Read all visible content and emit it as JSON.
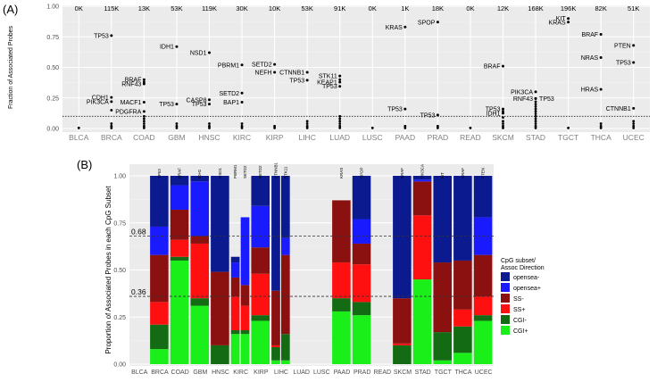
{
  "panel_a_label": "(A)",
  "panel_b_label": "(B)",
  "chart_data": [
    {
      "type": "scatter",
      "ylabel": "Fraction of Associated Probes",
      "ylim": [
        0,
        1.0
      ],
      "yticks": [
        "0.00",
        "0.25",
        "0.50",
        "0.75",
        "1.00"
      ],
      "grid": true,
      "threshold": 0.1,
      "categories": [
        "BLCA",
        "BRCA",
        "COAD",
        "GBM",
        "HNSC",
        "KIRC",
        "KIRP",
        "LIHC",
        "LUAD",
        "LUSC",
        "PAAD",
        "PRAD",
        "READ",
        "SKCM",
        "STAD",
        "TGCT",
        "THCA",
        "UCEC"
      ],
      "counts": [
        "0K",
        "115K",
        "13K",
        "53K",
        "119K",
        "30K",
        "10K",
        "53K",
        "91K",
        "0K",
        "1K",
        "18K",
        "0K",
        "12K",
        "168K",
        "196K",
        "82K",
        "51K"
      ],
      "labeled_points": [
        {
          "cat": 1,
          "y": 0.76,
          "label": "TP53",
          "side": "left"
        },
        {
          "cat": 1,
          "y": 0.255,
          "label": "CDH1",
          "side": "left"
        },
        {
          "cat": 1,
          "y": 0.22,
          "label": "PIK3CA",
          "side": "left"
        },
        {
          "cat": 2,
          "y": 0.4,
          "label": "BRAF",
          "side": "left"
        },
        {
          "cat": 2,
          "y": 0.365,
          "label": "RNF43",
          "side": "left"
        },
        {
          "cat": 2,
          "y": 0.215,
          "label": "MACF1",
          "side": "left"
        },
        {
          "cat": 2,
          "y": 0.14,
          "label": "PDGFRA",
          "side": "left"
        },
        {
          "cat": 3,
          "y": 0.67,
          "label": "IDH1",
          "side": "left"
        },
        {
          "cat": 3,
          "y": 0.2,
          "label": "TP53",
          "side": "left"
        },
        {
          "cat": 4,
          "y": 0.62,
          "label": "NSD1",
          "side": "left"
        },
        {
          "cat": 4,
          "y": 0.235,
          "label": "CASP8",
          "side": "left"
        },
        {
          "cat": 4,
          "y": 0.2,
          "label": "TP53",
          "side": "left"
        },
        {
          "cat": 5,
          "y": 0.52,
          "label": "PBRM1",
          "side": "left"
        },
        {
          "cat": 5,
          "y": 0.29,
          "label": "SETD2",
          "side": "left"
        },
        {
          "cat": 5,
          "y": 0.215,
          "label": "BAP1",
          "side": "left"
        },
        {
          "cat": 6,
          "y": 0.525,
          "label": "SETD2",
          "side": "left"
        },
        {
          "cat": 6,
          "y": 0.46,
          "label": "NEFH",
          "side": "left"
        },
        {
          "cat": 7,
          "y": 0.46,
          "label": "CTNNB1",
          "side": "left"
        },
        {
          "cat": 7,
          "y": 0.395,
          "label": "TP53",
          "side": "left"
        },
        {
          "cat": 8,
          "y": 0.43,
          "label": "STK11",
          "side": "left"
        },
        {
          "cat": 8,
          "y": 0.38,
          "label": "KEAP1",
          "side": "left"
        },
        {
          "cat": 8,
          "y": 0.345,
          "label": "TP53",
          "side": "left"
        },
        {
          "cat": 10,
          "y": 0.83,
          "label": "KRAS",
          "side": "left"
        },
        {
          "cat": 10,
          "y": 0.16,
          "label": "TP53",
          "side": "left"
        },
        {
          "cat": 11,
          "y": 0.87,
          "label": "SPOP",
          "side": "left"
        },
        {
          "cat": 11,
          "y": 0.11,
          "label": "TP53",
          "side": "left"
        },
        {
          "cat": 13,
          "y": 0.51,
          "label": "BRAF",
          "side": "left"
        },
        {
          "cat": 13,
          "y": 0.16,
          "label": "TP53",
          "side": "left"
        },
        {
          "cat": 13,
          "y": 0.125,
          "label": "IDH1",
          "side": "left"
        },
        {
          "cat": 14,
          "y": 0.3,
          "label": "PIK3CA",
          "side": "left"
        },
        {
          "cat": 14,
          "y": 0.245,
          "label": "RNF43",
          "side": "left"
        },
        {
          "cat": 14,
          "y": 0.245,
          "label": "TP53",
          "side": "right"
        },
        {
          "cat": 15,
          "y": 0.9,
          "label": "KIT",
          "side": "left"
        },
        {
          "cat": 15,
          "y": 0.87,
          "label": "KRAS",
          "side": "left"
        },
        {
          "cat": 16,
          "y": 0.77,
          "label": "BRAF",
          "side": "left"
        },
        {
          "cat": 16,
          "y": 0.58,
          "label": "NRAS",
          "side": "left"
        },
        {
          "cat": 16,
          "y": 0.32,
          "label": "HRAS",
          "side": "left"
        },
        {
          "cat": 17,
          "y": 0.68,
          "label": "PTEN",
          "side": "left"
        },
        {
          "cat": 17,
          "y": 0.54,
          "label": "TP53",
          "side": "left"
        },
        {
          "cat": 17,
          "y": 0.165,
          "label": "CTNNB1",
          "side": "left"
        }
      ],
      "minor_points": [
        {
          "cat": 0,
          "ys": [
            0.005
          ]
        },
        {
          "cat": 1,
          "ys": [
            0.005,
            0.02,
            0.04,
            0.15
          ]
        },
        {
          "cat": 2,
          "ys": [
            0.005,
            0.02,
            0.04,
            0.06,
            0.08,
            0.1,
            0.38
          ]
        },
        {
          "cat": 3,
          "ys": [
            0.005,
            0.02,
            0.04
          ]
        },
        {
          "cat": 4,
          "ys": [
            0.005,
            0.02,
            0.04
          ]
        },
        {
          "cat": 5,
          "ys": [
            0.005,
            0.02,
            0.04
          ]
        },
        {
          "cat": 6,
          "ys": [
            0.005,
            0.02
          ]
        },
        {
          "cat": 7,
          "ys": [
            0.005,
            0.02,
            0.04,
            0.06
          ]
        },
        {
          "cat": 8,
          "ys": [
            0.005,
            0.02,
            0.04,
            0.06,
            0.08,
            0.1,
            0.4
          ]
        },
        {
          "cat": 9,
          "ys": [
            0.005
          ]
        },
        {
          "cat": 10,
          "ys": [
            0.005,
            0.02
          ]
        },
        {
          "cat": 11,
          "ys": [
            0.005,
            0.02
          ]
        },
        {
          "cat": 12,
          "ys": [
            0.005
          ]
        },
        {
          "cat": 13,
          "ys": [
            0.005,
            0.02,
            0.04,
            0.06,
            0.09,
            0.14
          ]
        },
        {
          "cat": 14,
          "ys": [
            0.005,
            0.02,
            0.04,
            0.06,
            0.08,
            0.1,
            0.12,
            0.14,
            0.16,
            0.18,
            0.2,
            0.22
          ]
        },
        {
          "cat": 15,
          "ys": [
            0.005
          ]
        },
        {
          "cat": 16,
          "ys": [
            0.005,
            0.02,
            0.04
          ]
        },
        {
          "cat": 17,
          "ys": [
            0.005,
            0.02,
            0.04,
            0.06
          ]
        }
      ]
    },
    {
      "type": "bar",
      "stacked": true,
      "ylabel": "Proportion of Associated Probes in each CpG Subset",
      "ylim": [
        0,
        1.0
      ],
      "yticks": [
        "0.00",
        "0.25",
        "0.50",
        "0.75",
        "1.00"
      ],
      "ref_lines": [
        0.68,
        0.36
      ],
      "ref_labels": [
        "0.68",
        "0.36"
      ],
      "categories": [
        "BLCA",
        "BRCA",
        "COAD",
        "GBM",
        "HNSC",
        "KIRC",
        "KIRP",
        "LIHC",
        "LUAD",
        "LUSC",
        "PAAD",
        "PRAD",
        "READ",
        "SKCM",
        "STAD",
        "TGCT",
        "THCA",
        "UCEC"
      ],
      "legend_title_line1": "CpG subset/",
      "legend_title_line2": "Assoc Direction",
      "legend": [
        {
          "name": "opensea-",
          "color": "#0b1a8f"
        },
        {
          "name": "opensea+",
          "color": "#1a1aff"
        },
        {
          "name": "SS-",
          "color": "#8b1010"
        },
        {
          "name": "SS+",
          "color": "#ff1010"
        },
        {
          "name": "CGI-",
          "color": "#136b13"
        },
        {
          "name": "CGI+",
          "color": "#1aef1a"
        }
      ],
      "bars": [
        {
          "cat": 1,
          "gene": "TP53",
          "values": [
            0.27,
            0.15,
            0.25,
            0.12,
            0.13,
            0.08
          ]
        },
        {
          "cat": 2,
          "gene": "BRAF",
          "values": [
            0.05,
            0.13,
            0.16,
            0.09,
            0.02,
            0.55
          ]
        },
        {
          "cat": 3,
          "gene": "IDH1",
          "values": [
            0.03,
            0.29,
            0.04,
            0.29,
            0.04,
            0.31
          ]
        },
        {
          "cat": 4,
          "gene": "NSD1",
          "values": [
            0.51,
            0.0,
            0.39,
            0.0,
            0.1,
            0.0
          ]
        },
        {
          "cat": 5,
          "gene": "PBRM1",
          "values": [
            0.03,
            0.08,
            0.1,
            0.18,
            0.02,
            0.16
          ]
        },
        {
          "cat": 5,
          "gene": "SETD2",
          "values": [
            0.0,
            0.36,
            0.11,
            0.13,
            0.02,
            0.16
          ]
        },
        {
          "cat": 6,
          "gene": "SETD2",
          "values": [
            0.16,
            0.22,
            0.14,
            0.22,
            0.03,
            0.23
          ]
        },
        {
          "cat": 7,
          "gene": "CTNNB1",
          "values": [
            0.61,
            0.0,
            0.29,
            0.01,
            0.07,
            0.02
          ]
        },
        {
          "cat": 7,
          "gene": "STK11",
          "values": [
            0.33,
            0.09,
            0.42,
            0.0,
            0.14,
            0.02
          ]
        },
        {
          "cat": 10,
          "gene": "KRAS",
          "values": [
            0.0,
            0.0,
            0.33,
            0.19,
            0.07,
            0.28
          ]
        },
        {
          "cat": 11,
          "gene": "SPOP",
          "values": [
            0.23,
            0.13,
            0.11,
            0.2,
            0.07,
            0.26
          ]
        },
        {
          "cat": 13,
          "gene": "BRAF",
          "values": [
            0.65,
            0.0,
            0.24,
            0.01,
            0.1,
            0.0
          ]
        },
        {
          "cat": 14,
          "gene": "PIK3CA",
          "values": [
            0.02,
            0.01,
            0.18,
            0.34,
            0.0,
            0.45
          ]
        },
        {
          "cat": 15,
          "gene": "KIT",
          "values": [
            0.46,
            0.0,
            0.37,
            0.0,
            0.15,
            0.02
          ]
        },
        {
          "cat": 16,
          "gene": "BRAF",
          "values": [
            0.45,
            0.0,
            0.26,
            0.09,
            0.14,
            0.06
          ]
        },
        {
          "cat": 17,
          "gene": "PTEN",
          "values": [
            0.22,
            0.2,
            0.22,
            0.1,
            0.03,
            0.23
          ]
        }
      ]
    }
  ]
}
